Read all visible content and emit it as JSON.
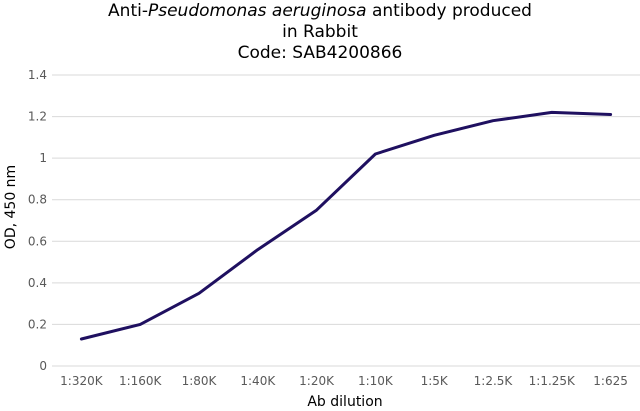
{
  "chart_data": {
    "type": "line",
    "title_lines": [
      {
        "before": "Anti-",
        "italic": "Pseudomonas aeruginosa",
        "after": " antibody produced"
      },
      {
        "before": "in Rabbit",
        "italic": "",
        "after": ""
      },
      {
        "before": "Code: SAB4200866",
        "italic": "",
        "after": ""
      }
    ],
    "xlabel": "Ab dilution",
    "ylabel": "OD, 450 nm",
    "categories": [
      "1:320K",
      "1:160K",
      "1:80K",
      "1:40K",
      "1:20K",
      "1:10K",
      "1:5K",
      "1:2.5K",
      "1:1.25K",
      "1:625"
    ],
    "series": [
      {
        "values": [
          0.13,
          0.2,
          0.35,
          0.56,
          0.75,
          1.02,
          1.11,
          1.18,
          1.22,
          1.21
        ]
      }
    ],
    "ylim": [
      0,
      1.4
    ],
    "yticks": [
      0,
      0.2,
      0.4,
      0.6,
      0.8,
      1,
      1.2,
      1.4
    ],
    "ytick_labels": [
      "0",
      "0.2",
      "0.4",
      "0.6",
      "0.8",
      "1",
      "1.2",
      "1.4"
    ],
    "grid": true,
    "legend": "none",
    "line_color": "#1f1060",
    "grid_color": "#d9d9d9"
  }
}
